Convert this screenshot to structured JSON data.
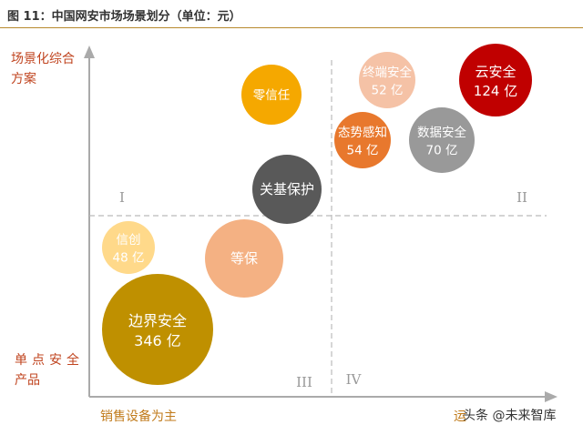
{
  "title": "图 11：中国网安市场场景划分（单位：元）",
  "watermark": "头条 @未来智库",
  "chart_data": {
    "type": "scatter",
    "chart_subtype": "bubble",
    "ylabel_top": [
      "场景化综合",
      "方案"
    ],
    "ylabel_bottom": [
      "单点安全",
      "产品"
    ],
    "xlabel_left": "销售设备为主",
    "xlabel_right": "运",
    "quadrants": [
      "I",
      "II",
      "III",
      "IV"
    ],
    "bubbles": [
      {
        "name": "零信任",
        "value": "",
        "color": "#f5a800"
      },
      {
        "name": "终端安全",
        "value": "52 亿",
        "size": 52,
        "color": "#f5c2a6"
      },
      {
        "name": "云安全",
        "value": "124 亿",
        "size": 124,
        "color": "#c00000"
      },
      {
        "name": "态势感知",
        "value": "54 亿",
        "size": 54,
        "color": "#e8782d"
      },
      {
        "name": "数据安全",
        "value": "70 亿",
        "size": 70,
        "color": "#999999"
      },
      {
        "name": "关基保护",
        "value": "",
        "color": "#595959"
      },
      {
        "name": "信创",
        "value": "48 亿",
        "size": 48,
        "color": "#ffd98a"
      },
      {
        "name": "等保",
        "value": "",
        "color": "#f4b183"
      },
      {
        "name": "边界安全",
        "value": "346 亿",
        "size": 346,
        "color": "#bf9000"
      }
    ]
  }
}
